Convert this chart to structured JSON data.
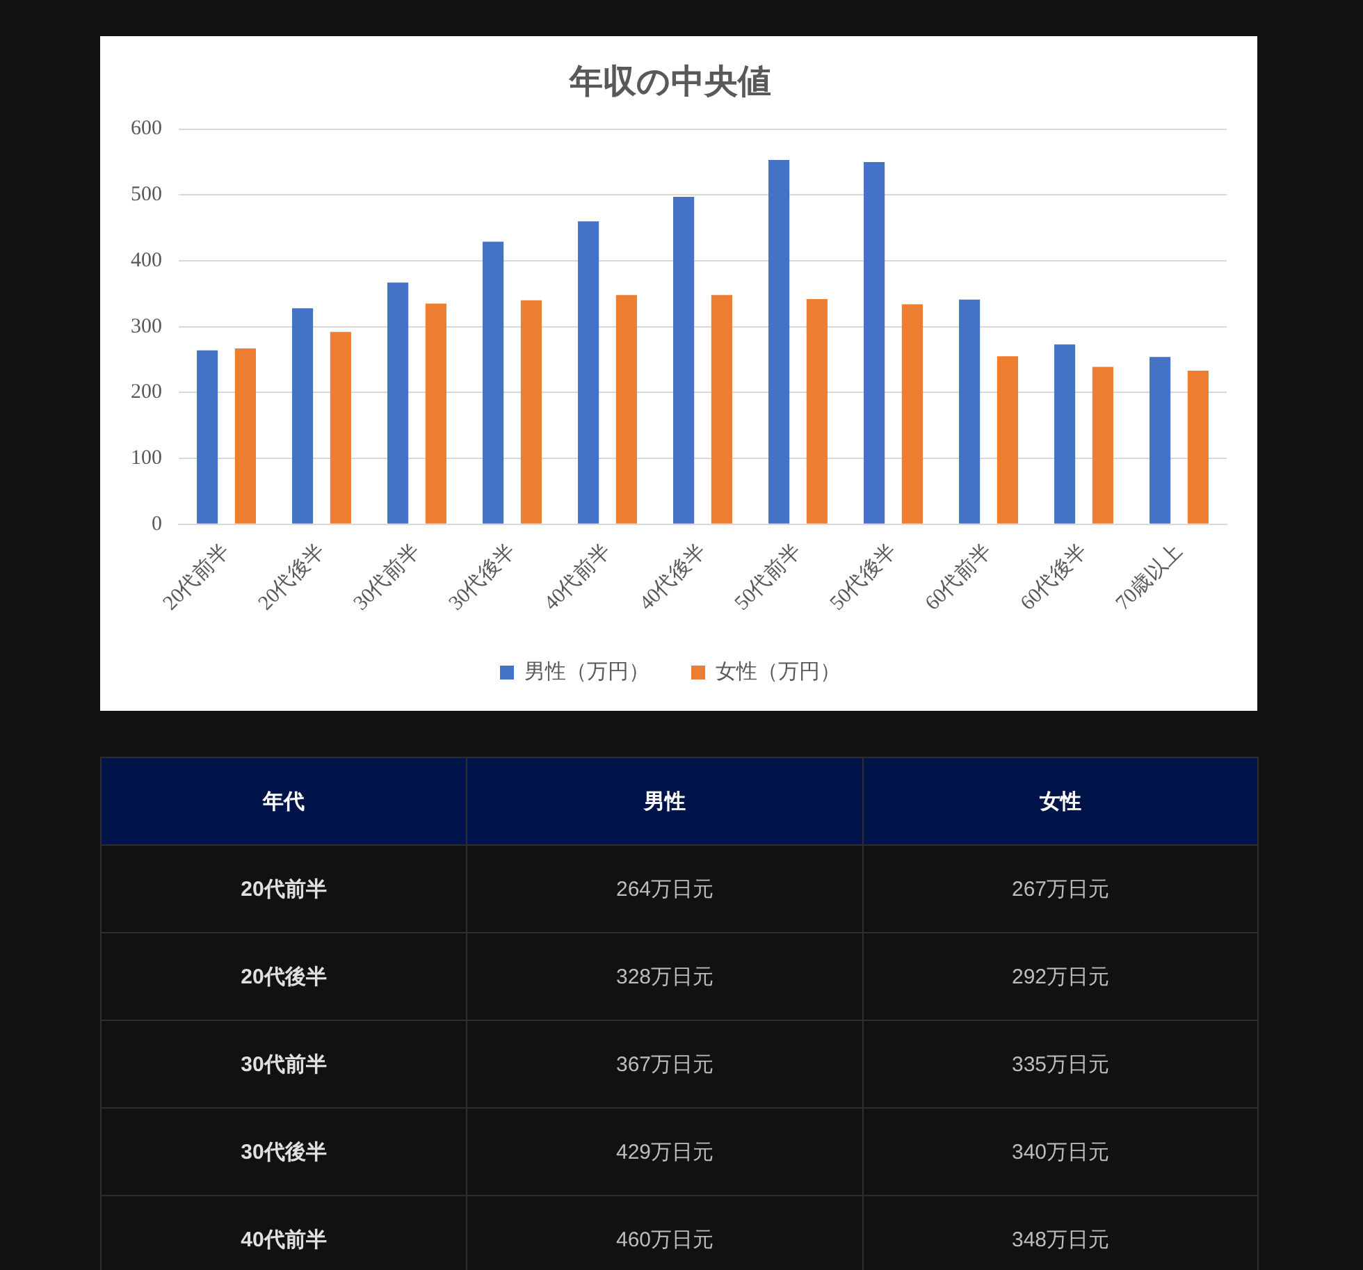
{
  "chart_data": [
    {
      "type": "bar",
      "title": "年収の中央値",
      "categories": [
        "20代前半",
        "20代後半",
        "30代前半",
        "30代後半",
        "40代前半",
        "40代後半",
        "50代前半",
        "50代後半",
        "60代前半",
        "60代後半",
        "70歳以上"
      ],
      "series": [
        {
          "name": "男性（万円）",
          "color": "#4472c4",
          "values": [
            264,
            328,
            367,
            429,
            460,
            497,
            553,
            550,
            341,
            273,
            254
          ]
        },
        {
          "name": "女性（万円）",
          "color": "#ed7d31",
          "values": [
            267,
            292,
            335,
            340,
            348,
            348,
            342,
            334,
            255,
            239,
            233
          ]
        }
      ],
      "ylim": [
        0,
        600
      ],
      "yticks": [
        0,
        100,
        200,
        300,
        400,
        500,
        600
      ],
      "grid": "y",
      "legend": "bottom"
    },
    {
      "type": "other",
      "annotations": [
        "年代",
        "男性",
        "女性",
        "20代前半",
        "264万日元",
        "267万日元",
        "20代後半",
        "328万日元",
        "292万日元",
        "30代前半",
        "367万日元",
        "335万日元",
        "30代後半",
        "429万日元",
        "340万日元",
        "40代前半",
        "460万日元",
        "348万日元"
      ]
    }
  ]
}
